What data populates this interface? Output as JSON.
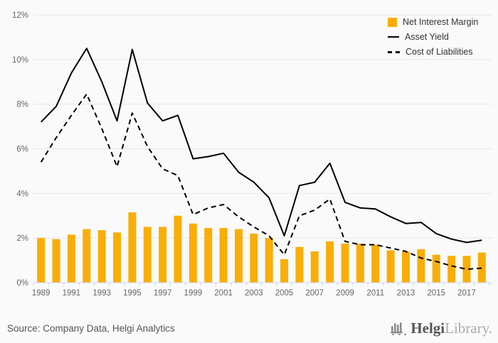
{
  "colors": {
    "background": "#fafafa",
    "bar": "#f9ae07",
    "line": "#000000",
    "grid": "#e7e7e7",
    "axis": "#ccd6eb",
    "axis_label": "#666666",
    "legend_text": "#333333",
    "source_text": "#555555"
  },
  "legend": {
    "items": [
      {
        "label": "Net Interest Margin",
        "swatch": "bar"
      },
      {
        "label": "Asset Yield",
        "swatch": "solid-line"
      },
      {
        "label": "Cost of Liabilities",
        "swatch": "dashed-line"
      }
    ]
  },
  "footer": {
    "source": "Source: Company Data, Helgi Analytics",
    "logo_bold": "Helgi",
    "logo_light": "Library."
  },
  "chart_data": {
    "type": "bar",
    "subtype": "bar+line combo, Highcharts style",
    "title": "",
    "xlabel": "",
    "ylabel": "",
    "ylim": [
      0,
      12
    ],
    "ytick_step": 2,
    "ytick_suffix": "%",
    "xtick_every": 2,
    "grid": true,
    "legend_position": "top-right",
    "categories": [
      1989,
      1990,
      1991,
      1992,
      1993,
      1994,
      1995,
      1996,
      1997,
      1998,
      1999,
      2000,
      2001,
      2002,
      2003,
      2004,
      2005,
      2006,
      2007,
      2008,
      2009,
      2010,
      2011,
      2012,
      2013,
      2014,
      2015,
      2016,
      2017,
      2018
    ],
    "series": [
      {
        "name": "Net Interest Margin",
        "type": "bar",
        "color": "#f9ae07",
        "values": [
          2.0,
          1.95,
          2.15,
          2.4,
          2.35,
          2.25,
          3.15,
          2.5,
          2.5,
          3.0,
          2.65,
          2.45,
          2.45,
          2.4,
          2.2,
          2.0,
          1.05,
          1.6,
          1.4,
          1.85,
          1.75,
          1.75,
          1.7,
          1.45,
          1.4,
          1.5,
          1.25,
          1.2,
          1.2,
          1.35
        ]
      },
      {
        "name": "Asset Yield",
        "type": "line",
        "style": "solid",
        "color": "#000000",
        "values": [
          7.2,
          7.9,
          9.4,
          10.5,
          9.0,
          7.25,
          10.45,
          8.05,
          7.25,
          7.5,
          5.55,
          5.65,
          5.8,
          4.95,
          4.5,
          3.8,
          2.1,
          4.35,
          4.5,
          5.35,
          3.6,
          3.35,
          3.3,
          2.95,
          2.65,
          2.7,
          2.2,
          1.95,
          1.8,
          1.9
        ]
      },
      {
        "name": "Cost of Liabilities",
        "type": "line",
        "style": "dashed",
        "color": "#000000",
        "values": [
          5.4,
          6.5,
          7.5,
          8.45,
          6.9,
          5.2,
          7.6,
          6.1,
          5.1,
          4.8,
          3.05,
          3.35,
          3.5,
          2.95,
          2.5,
          2.1,
          1.25,
          3.0,
          3.25,
          3.75,
          1.85,
          1.7,
          1.7,
          1.55,
          1.4,
          1.1,
          0.95,
          0.75,
          0.6,
          0.65
        ]
      }
    ]
  }
}
